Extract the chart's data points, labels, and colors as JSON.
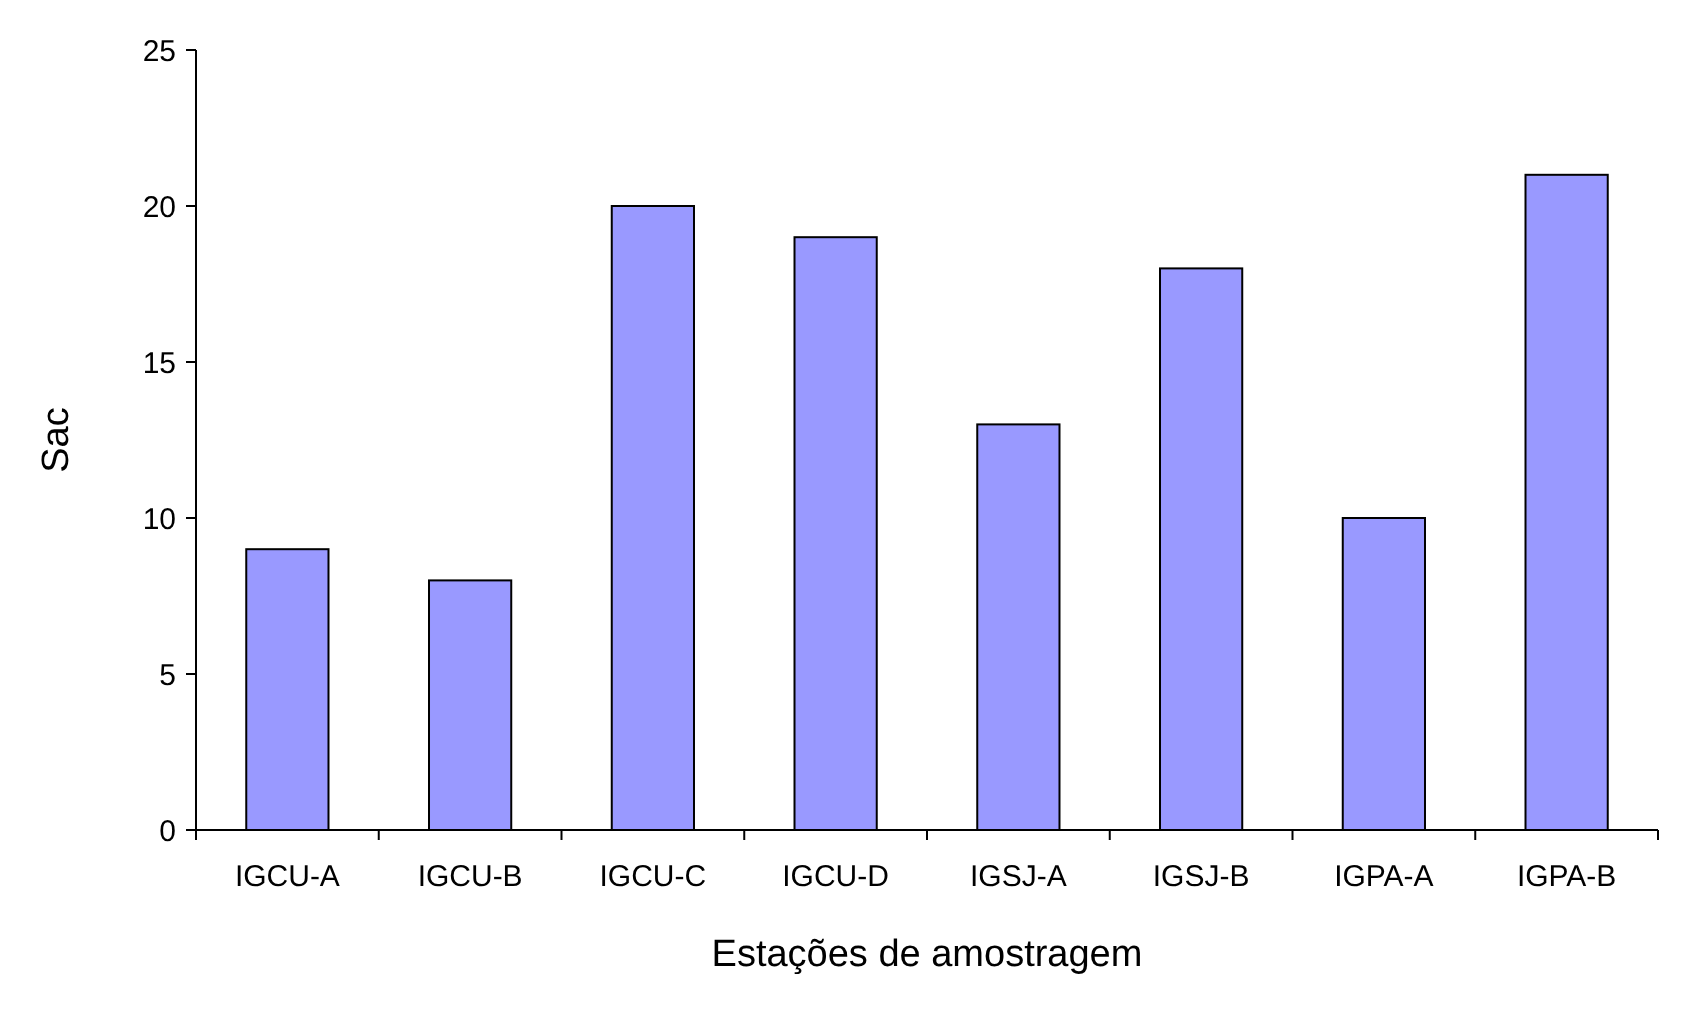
{
  "chart_data": {
    "type": "bar",
    "xlabel": "Estações de amostragem",
    "ylabel": "Sac",
    "categories": [
      "IGCU-A",
      "IGCU-B",
      "IGCU-C",
      "IGCU-D",
      "IGSJ-A",
      "IGSJ-B",
      "IGPA-A",
      "IGPA-B"
    ],
    "values": [
      9,
      8,
      20,
      19,
      13,
      18,
      10,
      21
    ],
    "color": "#9999ff",
    "ylim": [
      0,
      25
    ],
    "yticks": [
      0,
      5,
      10,
      15,
      20,
      25
    ],
    "grid": false
  }
}
